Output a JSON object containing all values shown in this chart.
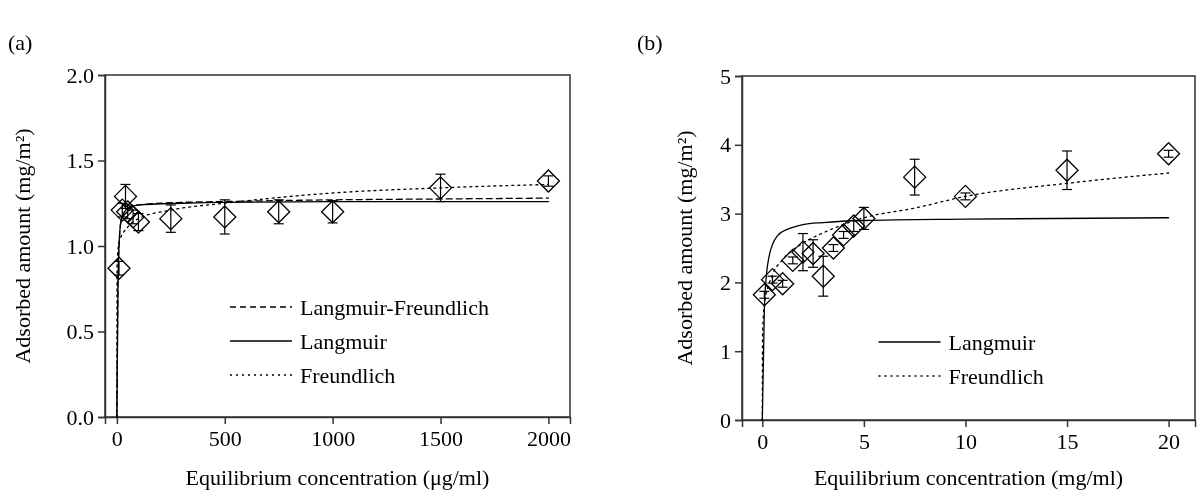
{
  "chart_data": [
    {
      "type": "scatter",
      "title": "(a)",
      "xlabel": "Equilibrium concentration (μg/ml)",
      "ylabel": "Adsorbed amount (mg/m²)",
      "xlim": [
        -55,
        2100
      ],
      "ylim": [
        0,
        2
      ],
      "xticks": [
        0,
        500,
        1000,
        1500,
        2000
      ],
      "yticks": [
        {
          "value": 0,
          "label": "0.0"
        },
        {
          "value": 0.5,
          "label": "0.5"
        },
        {
          "value": 1,
          "label": "1.0"
        },
        {
          "value": 1.5,
          "label": "1.5"
        },
        {
          "value": 2,
          "label": "2.0"
        }
      ],
      "grid": false,
      "legend": "bottom right",
      "series": [
        {
          "color": "#000000",
          "marker": "diamond",
          "x": [
            10,
            25,
            40,
            50,
            75,
            100,
            250,
            500,
            750,
            1000,
            1500,
            2000
          ],
          "values": [
            0.87,
            1.21,
            1.29,
            1.2,
            1.17,
            1.14,
            1.16,
            1.17,
            1.2,
            1.2,
            1.34,
            1.38
          ],
          "errors": [
            0.04,
            0.04,
            0.07,
            0.04,
            0.04,
            0.05,
            0.08,
            0.1,
            0.07,
            0.065,
            0.08,
            0.03
          ]
        },
        {
          "type": "line",
          "name": "Langmuir-Freundlich",
          "color": "#000000",
          "line_style": "dashed",
          "x": [
            0,
            5,
            10,
            20,
            50,
            100,
            300,
            500,
            1000,
            1500,
            2000
          ],
          "values": [
            0,
            0.75,
            1.0,
            1.15,
            1.22,
            1.24,
            1.255,
            1.26,
            1.27,
            1.275,
            1.28
          ]
        },
        {
          "type": "line",
          "name": "Langmuir",
          "color": "#000000",
          "line_style": "solid",
          "x": [
            0,
            5,
            10,
            20,
            50,
            100,
            300,
            500,
            1000,
            2000
          ],
          "values": [
            0,
            0.75,
            1.0,
            1.15,
            1.22,
            1.24,
            1.25,
            1.255,
            1.26,
            1.26
          ]
        },
        {
          "type": "line",
          "name": "Freundlich",
          "color": "#000000",
          "line_style": "dotted",
          "x": [
            0,
            1,
            10,
            50,
            100,
            250,
            500,
            1000,
            1500,
            2000
          ],
          "values": [
            0,
            0.9,
            1.02,
            1.11,
            1.16,
            1.21,
            1.25,
            1.31,
            1.34,
            1.36
          ]
        }
      ]
    },
    {
      "type": "scatter",
      "title": "(b)",
      "xlabel": "Equilibrium concentration (mg/ml)",
      "ylabel": "Adsorbed amount (mg/m²)",
      "xlim": [
        -1,
        21.3
      ],
      "ylim": [
        0,
        5
      ],
      "xticks": [
        0,
        5,
        10,
        15,
        20
      ],
      "yticks": [
        0,
        1,
        2,
        3,
        4,
        5
      ],
      "grid": false,
      "legend": "bottom",
      "series": [
        {
          "color": "#000000",
          "marker": "diamond",
          "x": [
            0.1,
            0.5,
            1,
            1.5,
            2,
            2.5,
            3,
            3.5,
            4,
            4.5,
            5,
            7.5,
            10,
            15,
            20
          ],
          "values": [
            1.82,
            2.04,
            1.98,
            2.32,
            2.44,
            2.42,
            2.09,
            2.5,
            2.69,
            2.82,
            2.93,
            3.53,
            3.25,
            3.63,
            3.87
          ],
          "errors": [
            0.05,
            0.05,
            0.05,
            0.05,
            0.27,
            0.2,
            0.29,
            0.05,
            0.05,
            0.08,
            0.16,
            0.26,
            0.05,
            0.28,
            0.05
          ]
        },
        {
          "type": "line",
          "name": "Langmuir",
          "color": "#000000",
          "line_style": "solid",
          "x": [
            0,
            0.1,
            0.2,
            0.35,
            0.5,
            0.75,
            1,
            1.5,
            2,
            3,
            5,
            10,
            20
          ],
          "values": [
            0,
            1.6,
            2.1,
            2.4,
            2.55,
            2.68,
            2.74,
            2.8,
            2.84,
            2.87,
            2.9,
            2.92,
            2.94
          ]
        },
        {
          "type": "line",
          "name": "Freundlich",
          "color": "#000000",
          "line_style": "dotted",
          "x": [
            0,
            0.01,
            0.1,
            0.5,
            1,
            2,
            3,
            5,
            7.5,
            10,
            15,
            20
          ],
          "values": [
            0,
            1.2,
            1.67,
            2.11,
            2.33,
            2.57,
            2.72,
            2.94,
            3.08,
            3.25,
            3.44,
            3.59
          ]
        }
      ]
    }
  ]
}
